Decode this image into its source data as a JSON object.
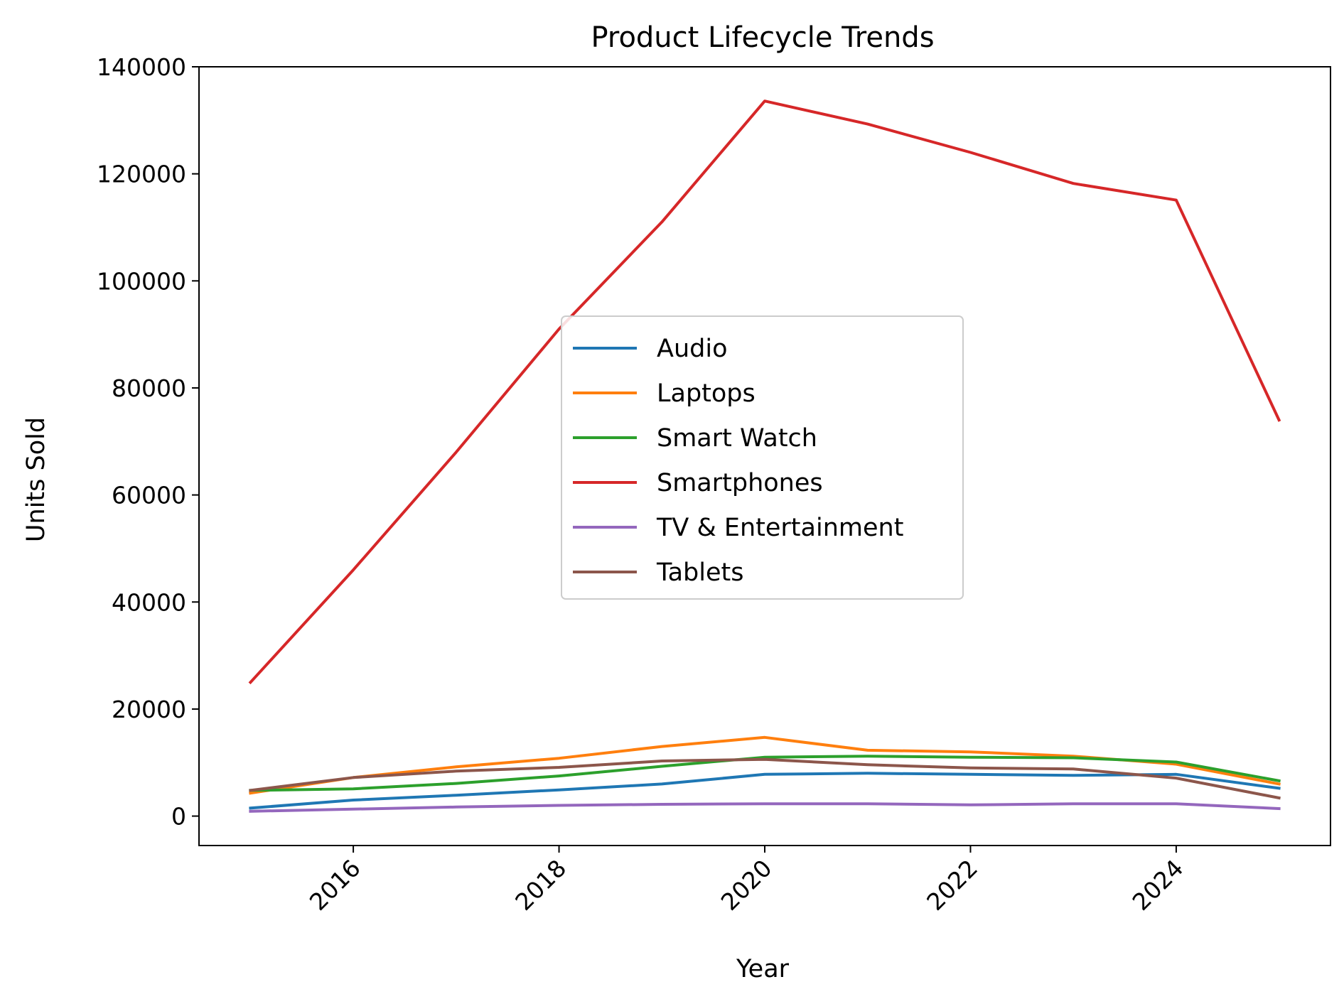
{
  "chart_data": {
    "type": "line",
    "title": "Product Lifecycle Trends",
    "xlabel": "Year",
    "ylabel": "Units Sold",
    "x": [
      2015,
      2016,
      2017,
      2018,
      2019,
      2020,
      2021,
      2022,
      2023,
      2024,
      2025
    ],
    "xlim": [
      2014.5,
      2025.5
    ],
    "ylim": [
      -5500,
      140000
    ],
    "xticks": [
      2016,
      2018,
      2020,
      2022,
      2024
    ],
    "yticks": [
      0,
      20000,
      40000,
      60000,
      80000,
      100000,
      120000,
      140000
    ],
    "xtick_rotation": 45,
    "grid": false,
    "legend_position": "center",
    "series": [
      {
        "name": "Audio",
        "color": "#1f77b4",
        "values": [
          1500,
          3000,
          3900,
          4900,
          6000,
          7800,
          8000,
          7800,
          7600,
          7800,
          5200
        ]
      },
      {
        "name": "Laptops",
        "color": "#ff7f0e",
        "values": [
          4300,
          7200,
          9200,
          10800,
          13000,
          14700,
          12300,
          12000,
          11200,
          9700,
          6000
        ]
      },
      {
        "name": "Smart Watch",
        "color": "#2ca02c",
        "values": [
          4800,
          5100,
          6100,
          7500,
          9300,
          11000,
          11200,
          11000,
          10900,
          10100,
          6600
        ]
      },
      {
        "name": "Smartphones",
        "color": "#d62728",
        "values": [
          25000,
          46000,
          68000,
          91000,
          111000,
          133600,
          129300,
          124000,
          118200,
          115100,
          74000
        ]
      },
      {
        "name": "TV & Entertainment",
        "color": "#9467bd",
        "values": [
          900,
          1300,
          1700,
          2000,
          2200,
          2300,
          2300,
          2100,
          2300,
          2300,
          1400
        ]
      },
      {
        "name": "Tablets",
        "color": "#8c564b",
        "values": [
          4800,
          7200,
          8400,
          9100,
          10300,
          10600,
          9600,
          9000,
          8800,
          7100,
          3400
        ]
      }
    ]
  }
}
